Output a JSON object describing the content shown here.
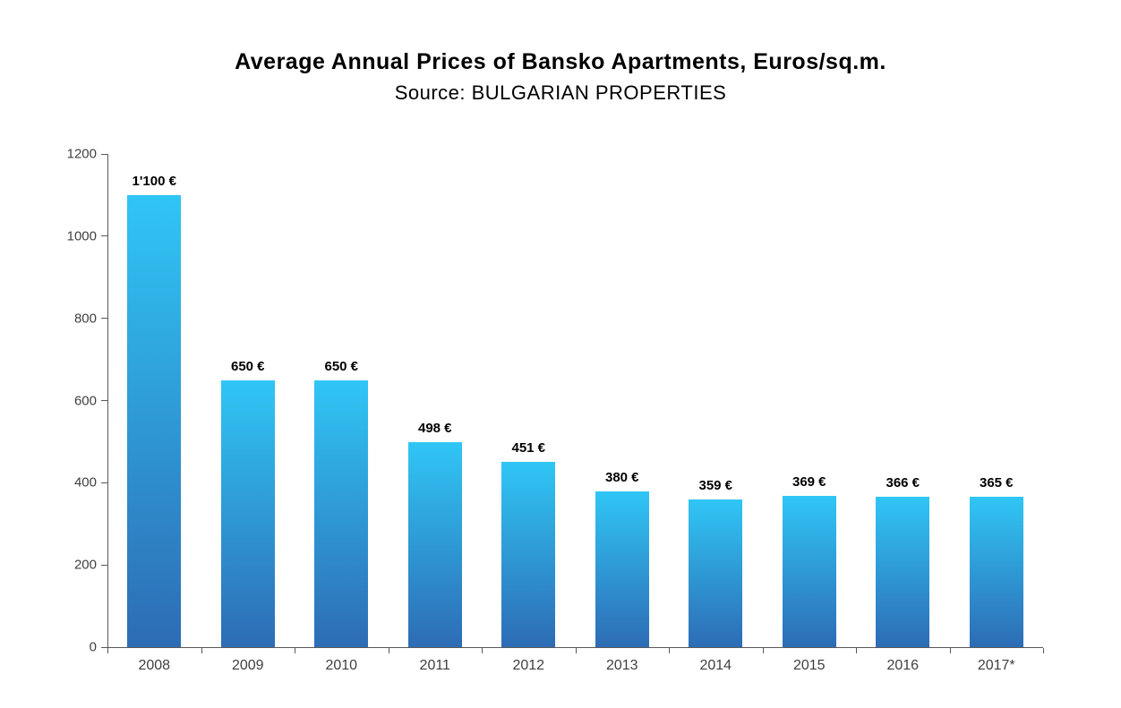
{
  "title": "Average Annual Prices of Bansko Apartments, Euros/sq.m.",
  "subtitle": "Source: BULGARIAN PROPERTIES",
  "colors": {
    "bar_gradient_top": "#30c6f5",
    "bar_gradient_bottom": "#2d6cb5",
    "axis": "#595959",
    "tick_text": "#404040",
    "label_text": "#000000"
  },
  "chart_data": {
    "type": "bar",
    "title": "Average Annual Prices of Bansko Apartments, Euros/sq.m.",
    "subtitle": "Source: BULGARIAN PROPERTIES",
    "categories": [
      "2008",
      "2009",
      "2010",
      "2011",
      "2012",
      "2013",
      "2014",
      "2015",
      "2016",
      "2017*"
    ],
    "values": [
      1100,
      650,
      650,
      498,
      451,
      380,
      359,
      369,
      366,
      365
    ],
    "value_labels": [
      "1'100 €",
      "650 €",
      "650 €",
      "498 €",
      "451 €",
      "380 €",
      "359 €",
      "369 €",
      "366 €",
      "365 €"
    ],
    "xlabel": "",
    "ylabel": "",
    "ylim": [
      0,
      1200
    ],
    "y_ticks": [
      0,
      200,
      400,
      600,
      800,
      1000,
      1200
    ],
    "grid": false,
    "legend": "none"
  }
}
